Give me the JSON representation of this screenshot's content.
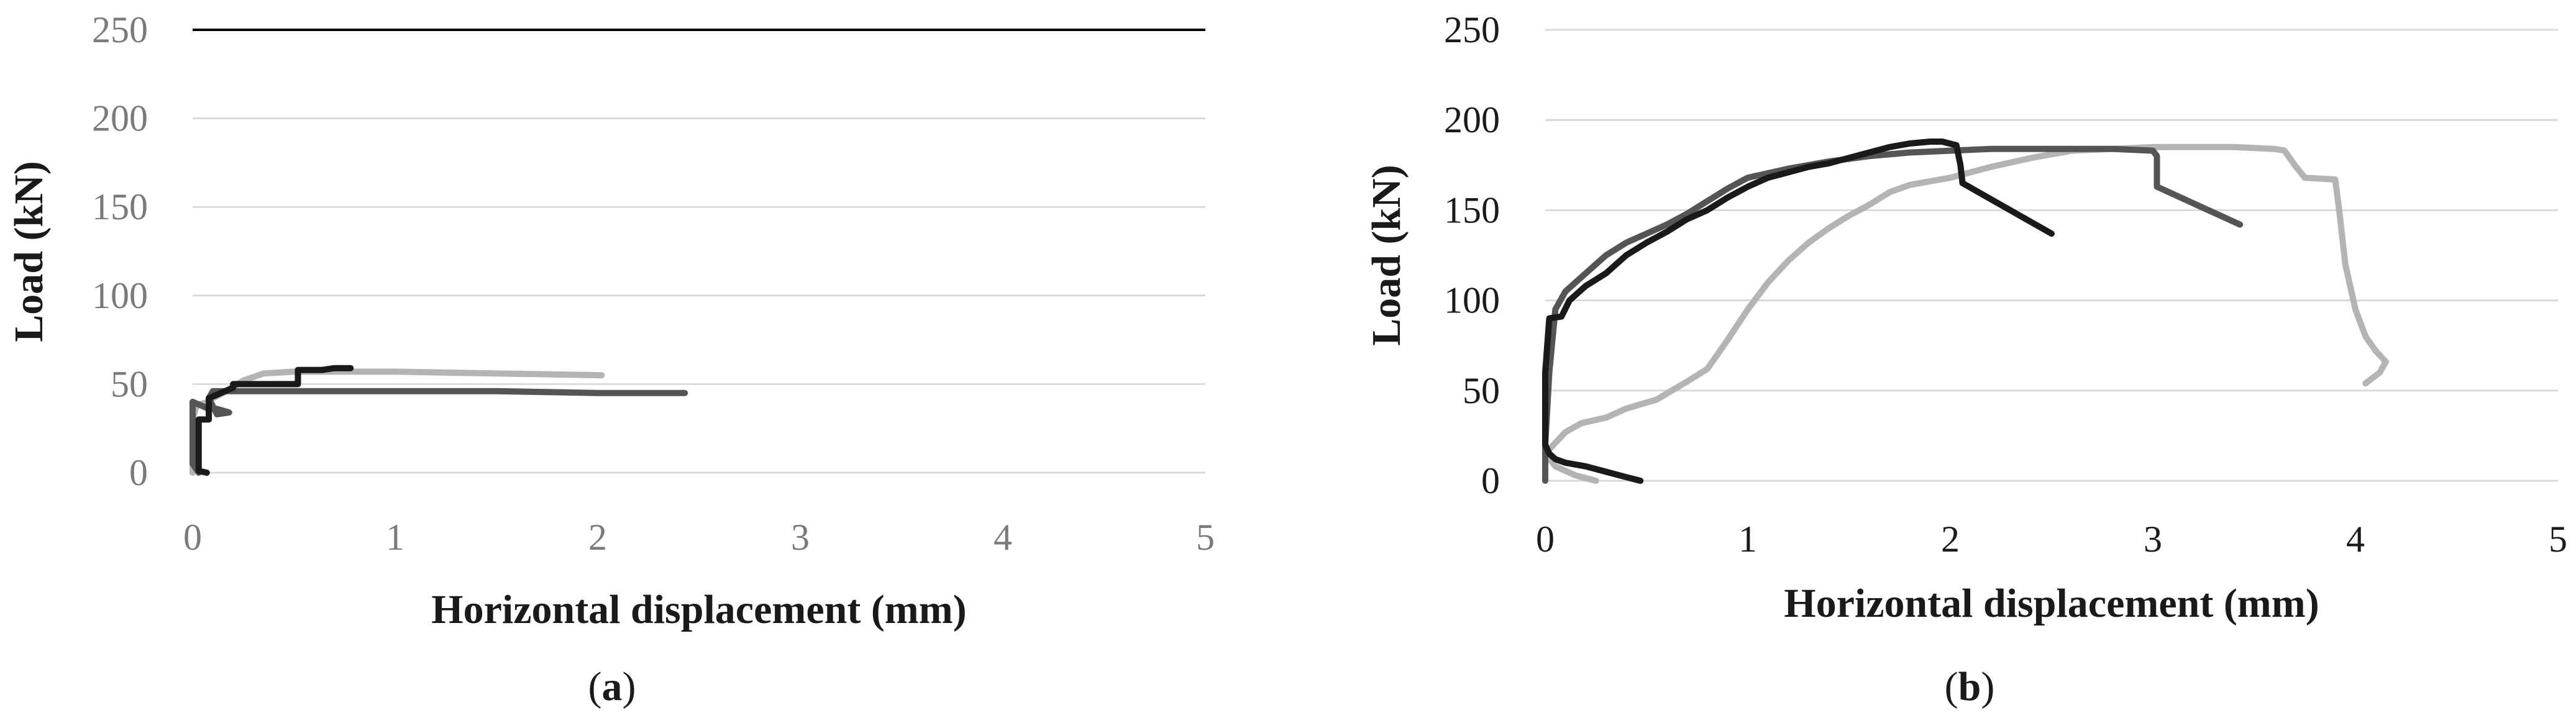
{
  "chart_data": [
    {
      "panel_label": {
        "open": "(",
        "letter": "a",
        "close": ")"
      },
      "type": "line",
      "xlabel": "Horizontal displacement (mm)",
      "ylabel": "Load (kN)",
      "xlim": [
        0,
        5
      ],
      "ylim": [
        0,
        250
      ],
      "x_ticks": [
        "0",
        "1",
        "2",
        "3",
        "4",
        "5"
      ],
      "y_ticks": [
        "0",
        "50",
        "100",
        "150",
        "200",
        "250"
      ],
      "grid": "horizontal",
      "tick_color": "#7a7a7a",
      "series": [
        {
          "color": "#b4b4b4",
          "points": [
            [
              0.0,
              0
            ],
            [
              0.0,
              30
            ],
            [
              0.02,
              38
            ],
            [
              0.08,
              40
            ],
            [
              0.1,
              42
            ],
            [
              0.15,
              45
            ],
            [
              0.25,
              52
            ],
            [
              0.35,
              56
            ],
            [
              0.5,
              57
            ],
            [
              1.0,
              57
            ],
            [
              1.5,
              56
            ],
            [
              2.02,
              55
            ]
          ]
        },
        {
          "color": "#555555",
          "points": [
            [
              0.03,
              0
            ],
            [
              0.0,
              5
            ],
            [
              0.0,
              40
            ],
            [
              0.04,
              38
            ],
            [
              0.08,
              36
            ],
            [
              0.12,
              36
            ],
            [
              0.18,
              34
            ],
            [
              0.12,
              33
            ],
            [
              0.08,
              42
            ],
            [
              0.1,
              46
            ],
            [
              0.2,
              46
            ],
            [
              0.5,
              46
            ],
            [
              1.0,
              46
            ],
            [
              1.5,
              46
            ],
            [
              2.0,
              45
            ],
            [
              2.43,
              45
            ]
          ]
        },
        {
          "color": "#1a1a1a",
          "points": [
            [
              0.07,
              0
            ],
            [
              0.03,
              1
            ],
            [
              0.03,
              30
            ],
            [
              0.08,
              30
            ],
            [
              0.08,
              42
            ],
            [
              0.14,
              45
            ],
            [
              0.2,
              48
            ],
            [
              0.2,
              50
            ],
            [
              0.52,
              50
            ],
            [
              0.52,
              58
            ],
            [
              0.64,
              58
            ],
            [
              0.7,
              59
            ],
            [
              0.78,
              59
            ]
          ]
        }
      ]
    },
    {
      "panel_label": {
        "open": "(",
        "letter": "b",
        "close": ")"
      },
      "type": "line",
      "xlabel": "Horizontal displacement (mm)",
      "ylabel": "Load (kN)",
      "xlim": [
        0,
        5
      ],
      "ylim": [
        0,
        250
      ],
      "x_ticks": [
        "0",
        "1",
        "2",
        "3",
        "4",
        "5"
      ],
      "y_ticks": [
        "0",
        "50",
        "100",
        "150",
        "200",
        "250"
      ],
      "grid": "horizontal",
      "tick_color": "#1a1a1a",
      "series": [
        {
          "color": "#b4b4b4",
          "points": [
            [
              0.25,
              0
            ],
            [
              0.15,
              3
            ],
            [
              0.05,
              8
            ],
            [
              0.0,
              15
            ],
            [
              0.1,
              27
            ],
            [
              0.18,
              32
            ],
            [
              0.3,
              35
            ],
            [
              0.4,
              40
            ],
            [
              0.55,
              45
            ],
            [
              0.7,
              55
            ],
            [
              0.8,
              62
            ],
            [
              0.9,
              78
            ],
            [
              1.0,
              95
            ],
            [
              1.1,
              110
            ],
            [
              1.2,
              122
            ],
            [
              1.3,
              132
            ],
            [
              1.4,
              140
            ],
            [
              1.5,
              147
            ],
            [
              1.6,
              153
            ],
            [
              1.7,
              160
            ],
            [
              1.8,
              164
            ],
            [
              1.9,
              166
            ],
            [
              2.0,
              168
            ],
            [
              2.2,
              174
            ],
            [
              2.4,
              179
            ],
            [
              2.6,
              183
            ],
            [
              2.8,
              184
            ],
            [
              3.0,
              185
            ],
            [
              3.2,
              185
            ],
            [
              3.4,
              185
            ],
            [
              3.6,
              184
            ],
            [
              3.65,
              183
            ],
            [
              3.7,
              175
            ],
            [
              3.75,
              168
            ],
            [
              3.9,
              167
            ],
            [
              3.92,
              150
            ],
            [
              3.95,
              120
            ],
            [
              4.0,
              95
            ],
            [
              4.05,
              80
            ],
            [
              4.1,
              72
            ],
            [
              4.15,
              66
            ],
            [
              4.12,
              60
            ],
            [
              4.05,
              54
            ]
          ]
        },
        {
          "color": "#555555",
          "points": [
            [
              0.0,
              0
            ],
            [
              0.0,
              20
            ],
            [
              0.02,
              60
            ],
            [
              0.05,
              95
            ],
            [
              0.1,
              105
            ],
            [
              0.2,
              115
            ],
            [
              0.3,
              125
            ],
            [
              0.4,
              132
            ],
            [
              0.5,
              137
            ],
            [
              0.6,
              142
            ],
            [
              0.7,
              148
            ],
            [
              0.8,
              155
            ],
            [
              0.9,
              162
            ],
            [
              1.0,
              168
            ],
            [
              1.2,
              173
            ],
            [
              1.4,
              177
            ],
            [
              1.6,
              180
            ],
            [
              1.8,
              182
            ],
            [
              2.0,
              183
            ],
            [
              2.2,
              184
            ],
            [
              2.4,
              184
            ],
            [
              2.6,
              184
            ],
            [
              2.8,
              184
            ],
            [
              3.0,
              183
            ],
            [
              3.02,
              180
            ],
            [
              3.02,
              163
            ],
            [
              3.43,
              142
            ]
          ]
        },
        {
          "color": "#1a1a1a",
          "points": [
            [
              0.47,
              0
            ],
            [
              0.4,
              2
            ],
            [
              0.3,
              5
            ],
            [
              0.2,
              8
            ],
            [
              0.1,
              10
            ],
            [
              0.05,
              12
            ],
            [
              0.02,
              15
            ],
            [
              0.0,
              20
            ],
            [
              0.0,
              60
            ],
            [
              0.02,
              90
            ],
            [
              0.08,
              91
            ],
            [
              0.12,
              100
            ],
            [
              0.2,
              108
            ],
            [
              0.3,
              115
            ],
            [
              0.4,
              125
            ],
            [
              0.5,
              132
            ],
            [
              0.6,
              138
            ],
            [
              0.7,
              145
            ],
            [
              0.8,
              150
            ],
            [
              0.9,
              157
            ],
            [
              1.0,
              163
            ],
            [
              1.1,
              168
            ],
            [
              1.2,
              171
            ],
            [
              1.3,
              174
            ],
            [
              1.4,
              176
            ],
            [
              1.5,
              179
            ],
            [
              1.6,
              182
            ],
            [
              1.7,
              185
            ],
            [
              1.8,
              187
            ],
            [
              1.9,
              188
            ],
            [
              1.96,
              188
            ],
            [
              2.03,
              186
            ],
            [
              2.05,
              175
            ],
            [
              2.06,
              165
            ],
            [
              2.5,
              137
            ]
          ]
        }
      ]
    }
  ]
}
